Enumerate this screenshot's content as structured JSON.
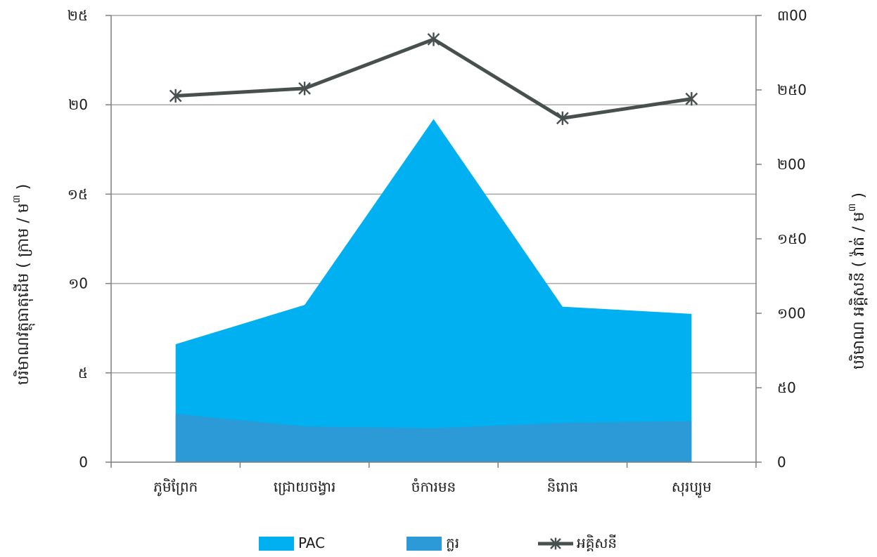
{
  "chart_data": {
    "type": "area",
    "categories": [
      "ភូមិព្រែក",
      "ជ្រោយចង្វារ",
      "ចំការមន",
      "និរោធ",
      "សុរប្បូម"
    ],
    "y_left": {
      "label": "បរិមាណវត្ថុធាតុដើម ( ក្រាម / ម",
      "superscript": "៣",
      "close": " )",
      "range": [
        0,
        25
      ],
      "ticks": [
        0,
        5,
        10,
        15,
        20,
        25
      ],
      "tick_labels": [
        "0",
        "៥",
        "១0",
        "១៥",
        "២0",
        "២៥"
      ]
    },
    "y_right": {
      "label": "បរិមាណ អគ្គិសនី ( វ៉ាត់ / ម",
      "superscript": "៣",
      "close": " )",
      "range": [
        0,
        300
      ],
      "ticks": [
        0,
        50,
        100,
        150,
        200,
        250,
        300
      ],
      "tick_labels": [
        "0",
        "៥0",
        "១00",
        "១៥0",
        "២00",
        "២៥0",
        "៣00"
      ]
    },
    "grid": true,
    "legend_position": "bottom",
    "series": [
      {
        "name": "PAC",
        "type": "area",
        "axis": "left",
        "color": "#00B0F0",
        "values": [
          6.6,
          8.8,
          19.2,
          8.7,
          8.3
        ]
      },
      {
        "name": "ក្លរ",
        "type": "area",
        "axis": "left",
        "color": "#2B9AD6",
        "values": [
          2.7,
          2.0,
          1.9,
          2.2,
          2.3
        ]
      },
      {
        "name": "អគ្គិសនី",
        "type": "line",
        "axis": "right",
        "color": "#47504F",
        "marker": "asterisk",
        "values": [
          246,
          251,
          284,
          231,
          244
        ]
      }
    ]
  }
}
